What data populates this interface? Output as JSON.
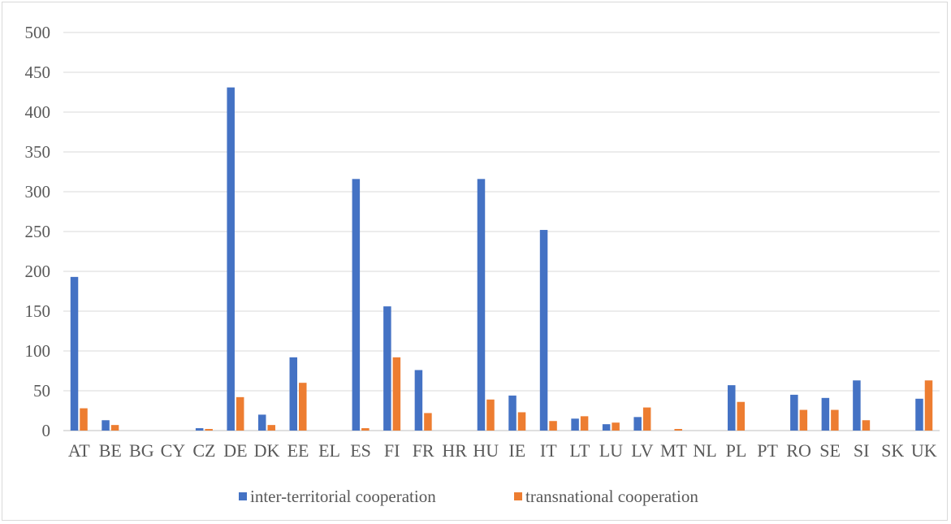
{
  "chart_data": {
    "type": "bar",
    "title": "",
    "xlabel": "",
    "ylabel": "",
    "ylim": [
      0,
      500
    ],
    "yticks": [
      0,
      50,
      100,
      150,
      200,
      250,
      300,
      350,
      400,
      450,
      500
    ],
    "grid": true,
    "legend_position": "bottom",
    "categories": [
      "AT",
      "BE",
      "BG",
      "CY",
      "CZ",
      "DE",
      "DK",
      "EE",
      "EL",
      "ES",
      "FI",
      "FR",
      "HR",
      "HU",
      "IE",
      "IT",
      "LT",
      "LU",
      "LV",
      "MT",
      "NL",
      "PL",
      "PT",
      "RO",
      "SE",
      "SI",
      "SK",
      "UK"
    ],
    "series": [
      {
        "name": "inter-territorial cooperation",
        "color": "#4472C4",
        "values": [
          193,
          13,
          0,
          0,
          3,
          431,
          20,
          92,
          0,
          316,
          156,
          76,
          0,
          316,
          44,
          252,
          15,
          8,
          17,
          0,
          0,
          57,
          0,
          45,
          41,
          63,
          0,
          40
        ]
      },
      {
        "name": "transnational cooperation",
        "color": "#ED7D31",
        "values": [
          28,
          7,
          0,
          0,
          2,
          42,
          7,
          60,
          0,
          3,
          92,
          22,
          0,
          39,
          23,
          12,
          18,
          10,
          29,
          2,
          0,
          36,
          0,
          26,
          26,
          13,
          0,
          63
        ]
      }
    ]
  }
}
